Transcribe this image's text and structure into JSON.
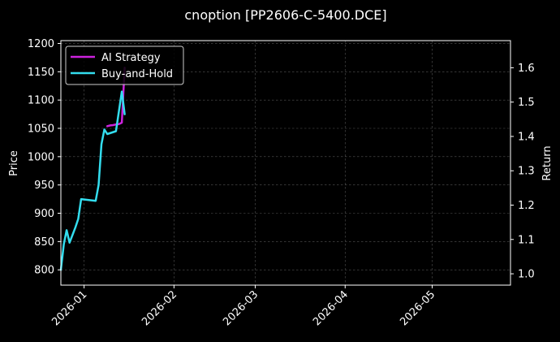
{
  "chart_data": {
    "type": "line",
    "title": "cnoption [PP2606-C-5400.DCE]",
    "xlabel": "",
    "ylabel": "Price",
    "y2label": "Return",
    "x_range": [
      "2025-12-24",
      "2026-05-28"
    ],
    "x_ticks": [
      "2026-01",
      "2026-02",
      "2026-03",
      "2026-04",
      "2026-05"
    ],
    "ylim": [
      773,
      1205
    ],
    "y_ticks": [
      800,
      850,
      900,
      950,
      1000,
      1050,
      1100,
      1150,
      1200
    ],
    "y2lim": [
      0.967,
      1.679
    ],
    "y2_ticks": [
      "1.0",
      "1.1",
      "1.2",
      "1.3",
      "1.4",
      "1.5",
      "1.6"
    ],
    "y2_tick_values": [
      1.0,
      1.1,
      1.2,
      1.3,
      1.4,
      1.5,
      1.6
    ],
    "grid": true,
    "legend_position": "top-left",
    "series": [
      {
        "name": "AI Strategy",
        "color": "#cc22dd",
        "axis": "y2",
        "x": [
          "2026-01-09",
          "2026-01-10",
          "2026-01-11",
          "2026-01-12",
          "2026-01-13",
          "2026-01-14",
          "2026-01-15"
        ],
        "values": [
          1.43,
          1.432,
          1.433,
          1.435,
          1.436,
          1.44,
          1.6
        ]
      },
      {
        "name": "Buy-and-Hold",
        "color": "#33ddee",
        "axis": "y",
        "x": [
          "2025-12-24",
          "2025-12-25",
          "2025-12-26",
          "2025-12-27",
          "2025-12-29",
          "2025-12-30",
          "2025-12-31",
          "2026-01-05",
          "2026-01-06",
          "2026-01-07",
          "2026-01-08",
          "2026-01-09",
          "2026-01-12",
          "2026-01-13",
          "2026-01-14",
          "2026-01-15"
        ],
        "values": [
          800,
          845,
          870,
          848,
          875,
          890,
          925,
          922,
          950,
          1022,
          1048,
          1040,
          1045,
          1080,
          1115,
          1075
        ]
      }
    ]
  }
}
